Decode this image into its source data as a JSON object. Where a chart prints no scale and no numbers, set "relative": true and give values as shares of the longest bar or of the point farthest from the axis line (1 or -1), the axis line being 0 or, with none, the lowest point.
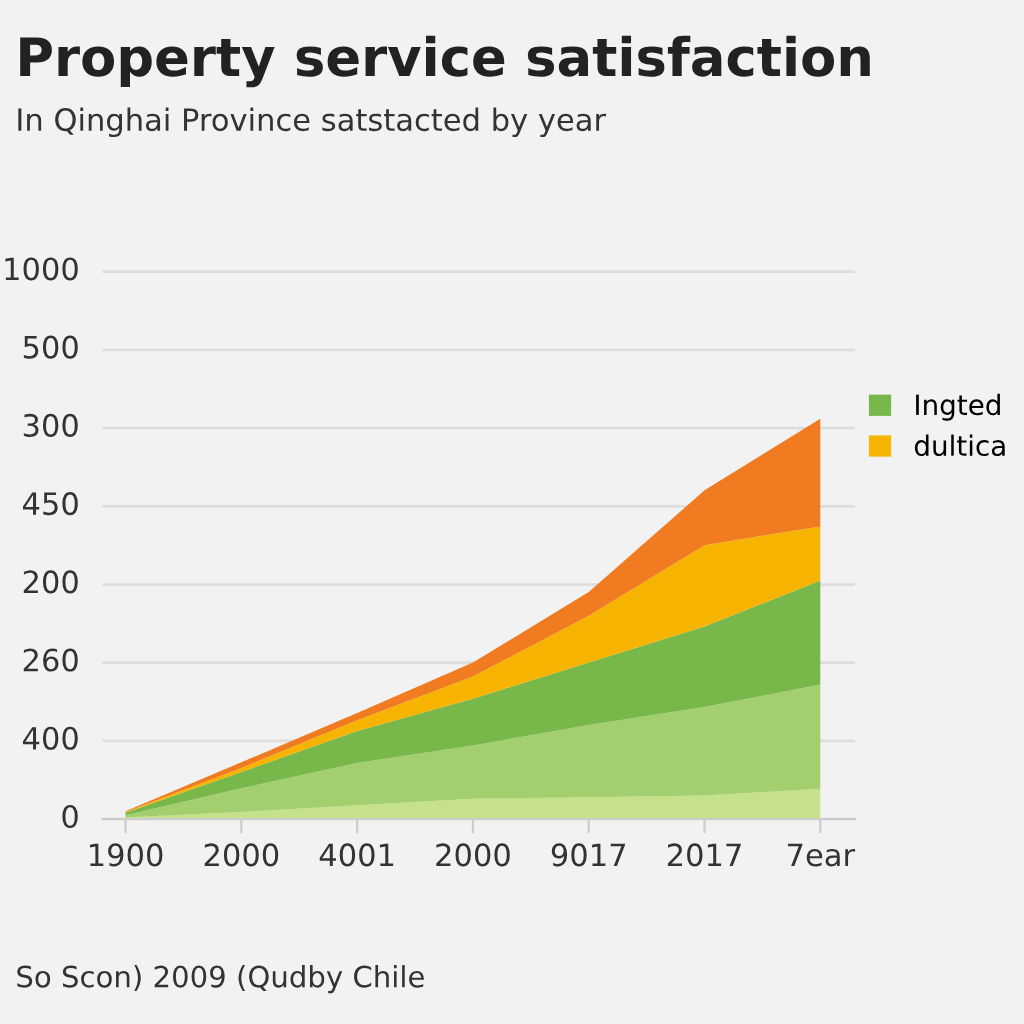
{
  "chart_data": {
    "type": "area",
    "stacked": true,
    "relative": true,
    "title": "Property service satisfaction",
    "subtitle": "In Qinghai Province satstacted by year",
    "annotations": [
      "So Scon) 2009 (Qudby Chile",
      "0",
      "400",
      "260",
      "200",
      "450",
      "300",
      "500",
      "1000"
    ],
    "categories": [
      "1900",
      "2000",
      "4001",
      "2000",
      "9017",
      "2017",
      "7ear"
    ],
    "series": [
      {
        "color": "#c5e18a",
        "values": [
          0.004,
          0.018,
          0.035,
          0.051,
          0.055,
          0.059,
          0.076
        ]
      },
      {
        "color": "#a3cf6e",
        "values": [
          0.006,
          0.059,
          0.105,
          0.133,
          0.18,
          0.221,
          0.26
        ]
      },
      {
        "name": "Ingted",
        "color": "#78b84a",
        "values": [
          0.006,
          0.041,
          0.08,
          0.117,
          0.156,
          0.201,
          0.26
        ]
      },
      {
        "name": "dultica",
        "color": "#f6b400",
        "values": [
          0.002,
          0.01,
          0.027,
          0.055,
          0.117,
          0.203,
          0.135
        ]
      },
      {
        "color": "#f07b20",
        "values": [
          0.002,
          0.014,
          0.018,
          0.035,
          0.059,
          0.137,
          0.269
        ]
      }
    ],
    "grid": "y",
    "legend": "top right"
  }
}
